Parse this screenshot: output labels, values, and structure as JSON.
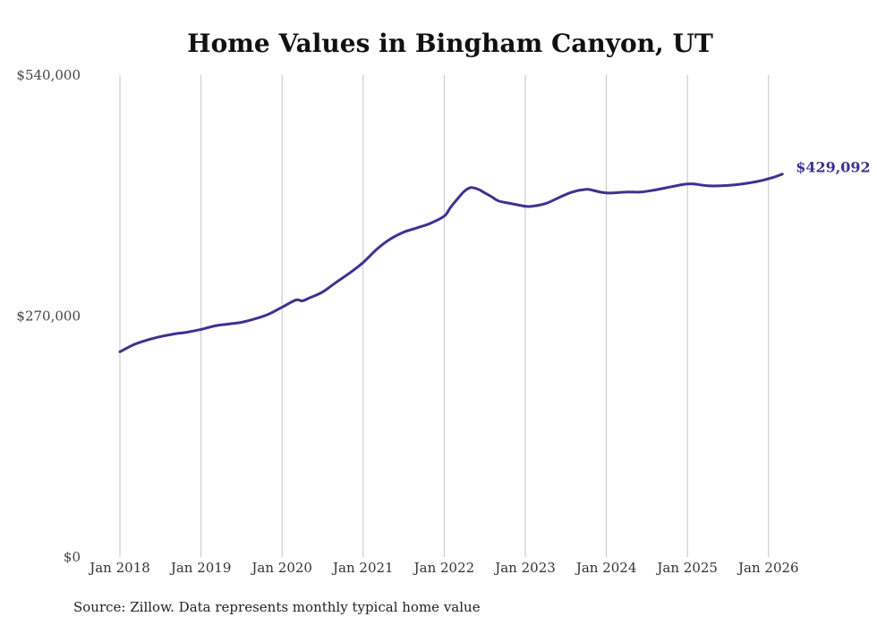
{
  "chart_data": {
    "type": "line",
    "title": "Home Values in Bingham Canyon, UT",
    "xlabel": "",
    "ylabel": "",
    "ylim": [
      0,
      540000
    ],
    "xlim": [
      2018.0,
      2026.17
    ],
    "yticks": [
      {
        "value": 0,
        "label": "$0"
      },
      {
        "value": 270000,
        "label": "$270,000"
      },
      {
        "value": 540000,
        "label": "$540,000"
      }
    ],
    "xticks": [
      {
        "value": 2018,
        "label": "Jan 2018"
      },
      {
        "value": 2019,
        "label": "Jan 2019"
      },
      {
        "value": 2020,
        "label": "Jan 2020"
      },
      {
        "value": 2021,
        "label": "Jan 2021"
      },
      {
        "value": 2022,
        "label": "Jan 2022"
      },
      {
        "value": 2023,
        "label": "Jan 2023"
      },
      {
        "value": 2024,
        "label": "Jan 2024"
      },
      {
        "value": 2025,
        "label": "Jan 2025"
      },
      {
        "value": 2026,
        "label": "Jan 2026"
      }
    ],
    "grid": "vertical",
    "series": [
      {
        "name": "Typical home value",
        "color": "#3d3290",
        "x": [
          2018.0,
          2018.17,
          2018.33,
          2018.5,
          2018.67,
          2018.83,
          2019.0,
          2019.17,
          2019.33,
          2019.5,
          2019.67,
          2019.83,
          2020.0,
          2020.17,
          2020.25,
          2020.33,
          2020.5,
          2020.67,
          2020.83,
          2021.0,
          2021.17,
          2021.33,
          2021.5,
          2021.67,
          2021.83,
          2022.0,
          2022.08,
          2022.17,
          2022.25,
          2022.33,
          2022.42,
          2022.5,
          2022.58,
          2022.67,
          2022.83,
          2023.0,
          2023.08,
          2023.25,
          2023.42,
          2023.58,
          2023.75,
          2023.83,
          2023.92,
          2024.0,
          2024.08,
          2024.25,
          2024.42,
          2024.58,
          2024.75,
          2024.92,
          2025.0,
          2025.08,
          2025.25,
          2025.42,
          2025.58,
          2025.75,
          2025.92,
          2026.0,
          2026.08,
          2026.17
        ],
        "values": [
          230000,
          238000,
          243000,
          247000,
          250000,
          252000,
          255000,
          259000,
          261000,
          263000,
          267000,
          272000,
          280000,
          288000,
          287000,
          290000,
          297000,
          308000,
          318000,
          330000,
          345000,
          356000,
          364000,
          369000,
          374000,
          382000,
          392000,
          402000,
          410000,
          414000,
          412000,
          408000,
          404000,
          399000,
          396000,
          393000,
          393000,
          396000,
          403000,
          409000,
          412000,
          411000,
          409000,
          408000,
          408000,
          409000,
          409000,
          411000,
          414000,
          417000,
          418000,
          418000,
          416000,
          416000,
          417000,
          419000,
          422000,
          424000,
          426000,
          429092
        ]
      }
    ],
    "end_label": "$429,092",
    "source": "Source: Zillow. Data represents monthly typical home value"
  },
  "colors": {
    "line": "#3d3290",
    "grid": "#c4c4c4",
    "background": "#ffffff"
  }
}
